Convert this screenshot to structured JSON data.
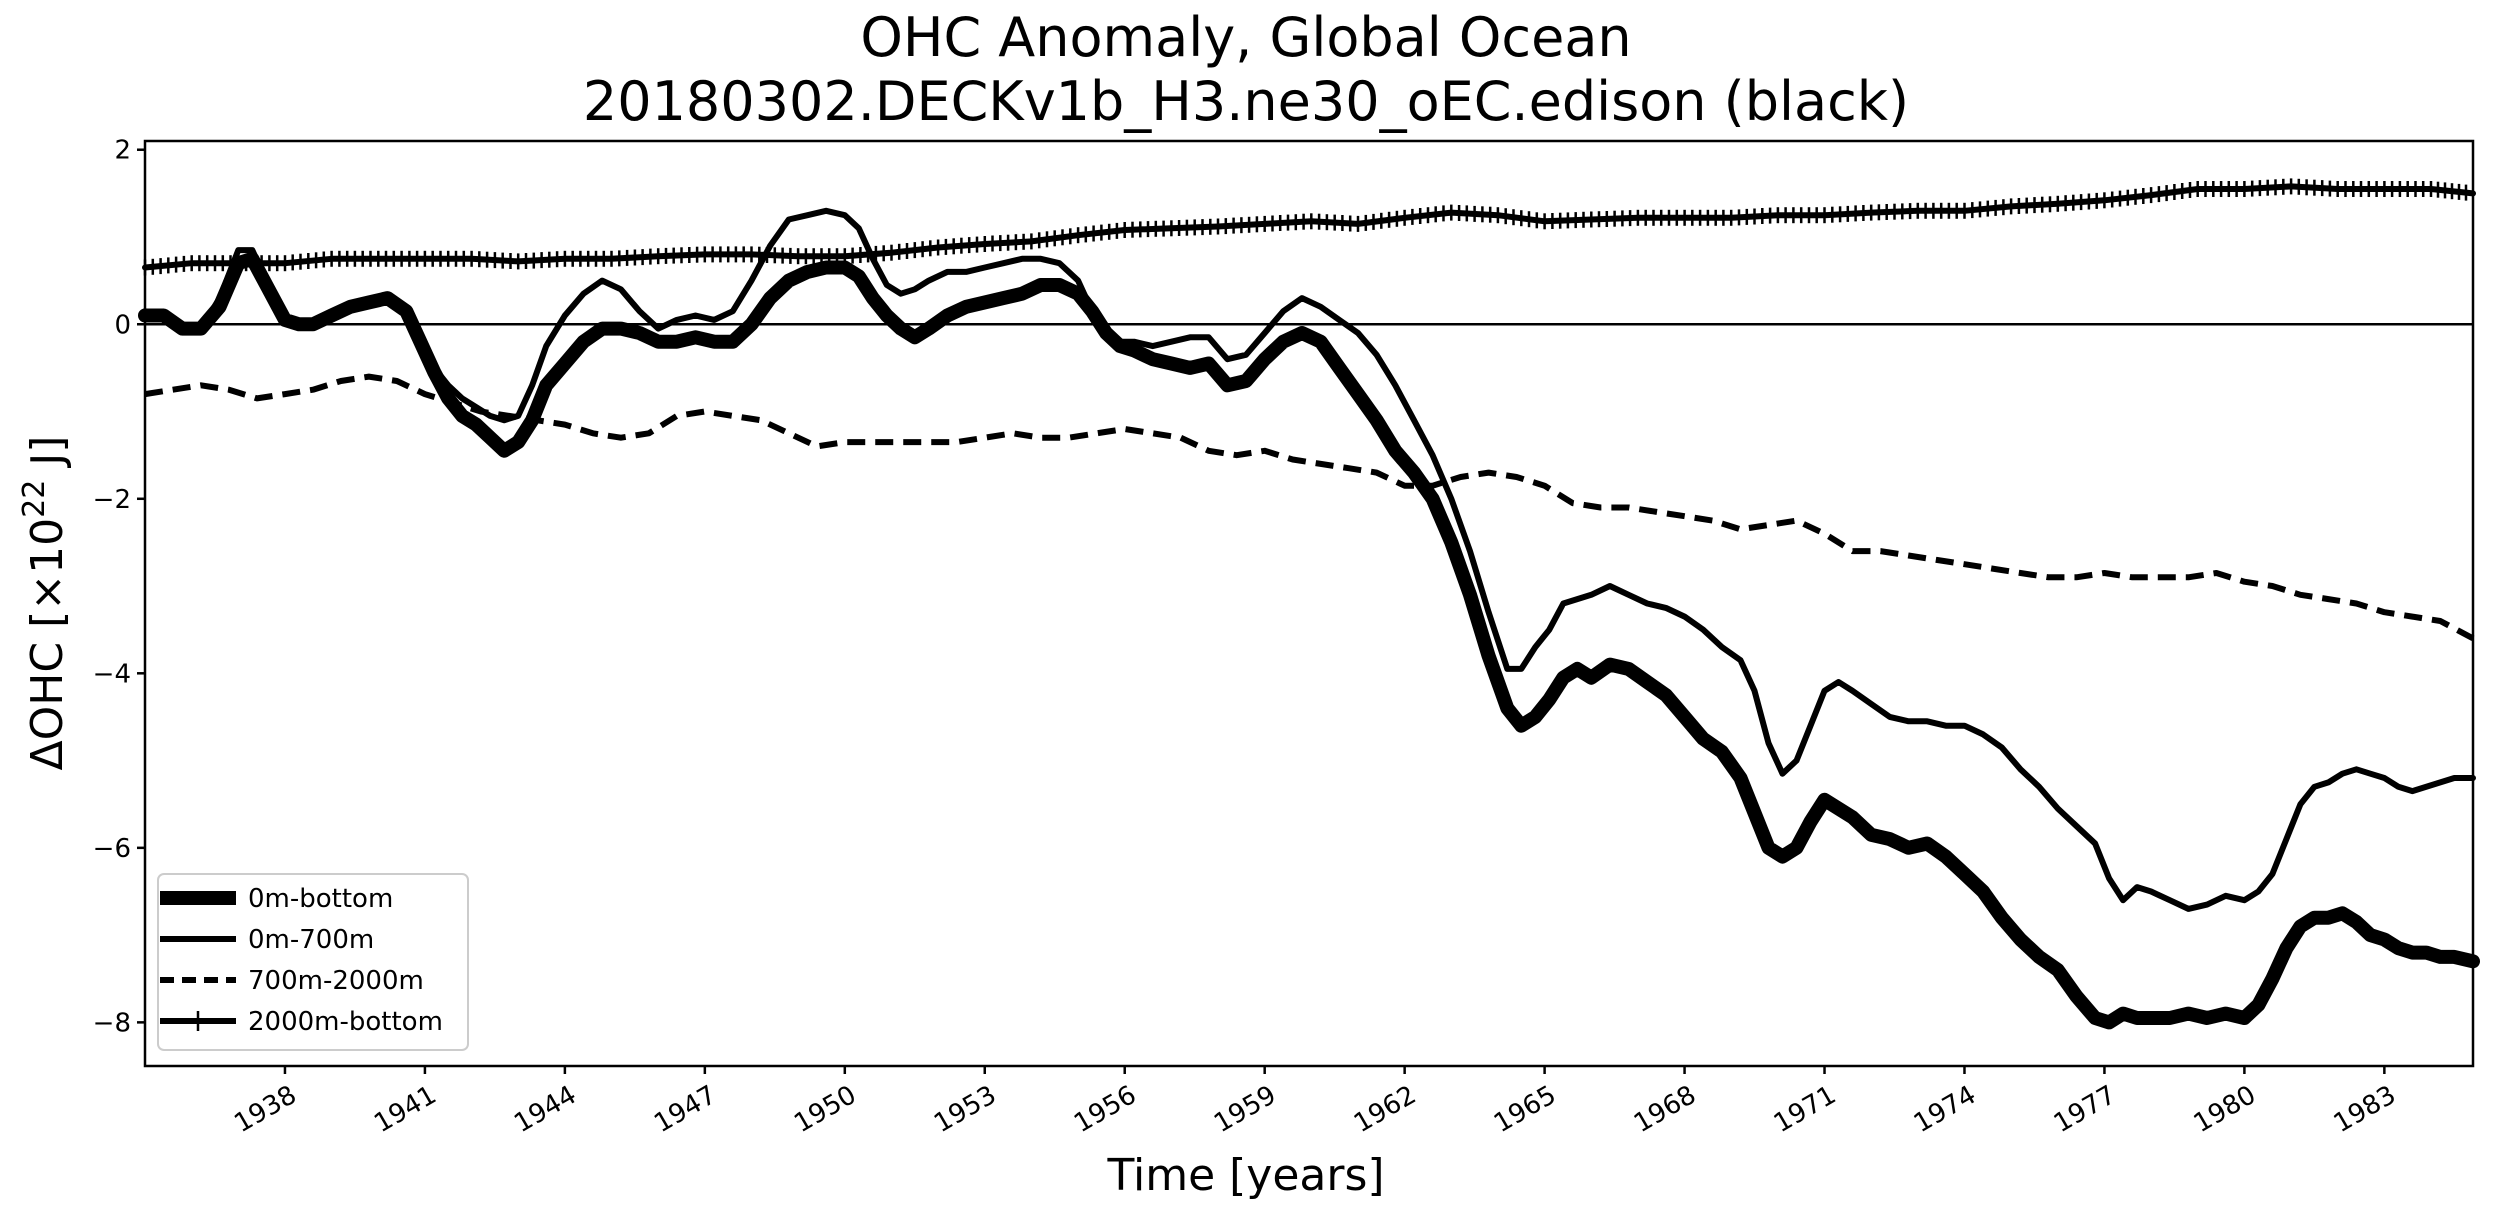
{
  "chart_data": {
    "type": "line",
    "title": "OHC Anomaly, Global Ocean",
    "subtitle": "20180302.DECKv1b_H3.ne30_oEC.edison (black)",
    "xlabel": "Time [years]",
    "ylabel_prefix": "ΔOHC [×10",
    "ylabel_exp": "22",
    "ylabel_suffix": " J]",
    "xlim": [
      1935.0,
      1984.9
    ],
    "ylim": [
      -8.5,
      2.1
    ],
    "xticks": [
      1938,
      1941,
      1944,
      1947,
      1950,
      1953,
      1956,
      1959,
      1962,
      1965,
      1968,
      1971,
      1974,
      1977,
      1980,
      1983
    ],
    "xtick_labels": [
      "1938",
      "1941",
      "1944",
      "1947",
      "1950",
      "1953",
      "1956",
      "1959",
      "1962",
      "1965",
      "1968",
      "1971",
      "1974",
      "1977",
      "1980",
      "1983"
    ],
    "yticks": [
      2,
      0,
      -2,
      -4,
      -6,
      -8
    ],
    "ytick_labels": [
      "2",
      "0",
      "−2",
      "−4",
      "−6",
      "−8"
    ],
    "zero_line": true,
    "grid": false,
    "legend_position": "lower-left",
    "series": [
      {
        "name": "0m-bottom",
        "style": "thick-solid",
        "color": "#000000",
        "x": [
          1935.0,
          1935.4,
          1935.8,
          1936.2,
          1936.6,
          1937.0,
          1937.3,
          1937.6,
          1938.0,
          1938.3,
          1938.6,
          1939.0,
          1939.4,
          1939.8,
          1940.2,
          1940.6,
          1940.9,
          1941.2,
          1941.5,
          1941.8,
          1942.1,
          1942.4,
          1942.7,
          1943.0,
          1943.3,
          1943.6,
          1944.0,
          1944.4,
          1944.8,
          1945.2,
          1945.6,
          1946.0,
          1946.4,
          1946.8,
          1947.2,
          1947.6,
          1948.0,
          1948.4,
          1948.8,
          1949.2,
          1949.6,
          1950.0,
          1950.3,
          1950.6,
          1950.9,
          1951.2,
          1951.5,
          1951.8,
          1952.2,
          1952.6,
          1953.0,
          1953.4,
          1953.8,
          1954.2,
          1954.6,
          1955.0,
          1955.3,
          1955.6,
          1955.9,
          1956.2,
          1956.6,
          1957.0,
          1957.4,
          1957.8,
          1958.2,
          1958.6,
          1959.0,
          1959.4,
          1959.8,
          1960.2,
          1960.6,
          1961.0,
          1961.4,
          1961.8,
          1962.2,
          1962.6,
          1963.0,
          1963.4,
          1963.8,
          1964.2,
          1964.5,
          1964.8,
          1965.1,
          1965.4,
          1965.7,
          1966.0,
          1966.4,
          1966.8,
          1967.2,
          1967.6,
          1968.0,
          1968.4,
          1968.8,
          1969.2,
          1969.5,
          1969.8,
          1970.1,
          1970.4,
          1970.7,
          1971.0,
          1971.3,
          1971.6,
          1972.0,
          1972.4,
          1972.8,
          1973.2,
          1973.6,
          1974.0,
          1974.4,
          1974.8,
          1975.2,
          1975.6,
          1976.0,
          1976.4,
          1976.8,
          1977.1,
          1977.4,
          1977.7,
          1978.0,
          1978.4,
          1978.8,
          1979.2,
          1979.6,
          1980.0,
          1980.3,
          1980.6,
          1980.9,
          1981.2,
          1981.5,
          1981.8,
          1982.1,
          1982.4,
          1982.7,
          1983.0,
          1983.3,
          1983.6,
          1983.9,
          1984.2,
          1984.5,
          1984.9
        ],
        "y": [
          0.1,
          0.1,
          -0.05,
          -0.05,
          0.2,
          0.7,
          0.75,
          0.45,
          0.05,
          0.0,
          0.0,
          0.1,
          0.2,
          0.25,
          0.3,
          0.15,
          -0.2,
          -0.55,
          -0.85,
          -1.05,
          -1.15,
          -1.3,
          -1.45,
          -1.35,
          -1.1,
          -0.7,
          -0.45,
          -0.2,
          -0.05,
          -0.05,
          -0.1,
          -0.2,
          -0.2,
          -0.15,
          -0.2,
          -0.2,
          0.0,
          0.3,
          0.5,
          0.6,
          0.65,
          0.65,
          0.55,
          0.3,
          0.1,
          -0.05,
          -0.15,
          -0.05,
          0.1,
          0.2,
          0.25,
          0.3,
          0.35,
          0.45,
          0.45,
          0.35,
          0.15,
          -0.1,
          -0.25,
          -0.3,
          -0.4,
          -0.45,
          -0.5,
          -0.45,
          -0.7,
          -0.65,
          -0.4,
          -0.2,
          -0.1,
          -0.2,
          -0.5,
          -0.8,
          -1.1,
          -1.45,
          -1.7,
          -2.0,
          -2.5,
          -3.1,
          -3.8,
          -4.4,
          -4.6,
          -4.5,
          -4.3,
          -4.05,
          -3.95,
          -4.05,
          -3.9,
          -3.95,
          -4.1,
          -4.25,
          -4.5,
          -4.75,
          -4.9,
          -5.2,
          -5.6,
          -6.0,
          -6.1,
          -6.0,
          -5.7,
          -5.45,
          -5.55,
          -5.65,
          -5.85,
          -5.9,
          -6.0,
          -5.95,
          -6.1,
          -6.3,
          -6.5,
          -6.8,
          -7.05,
          -7.25,
          -7.4,
          -7.7,
          -7.95,
          -8.0,
          -7.9,
          -7.95,
          -7.95,
          -7.95,
          -7.9,
          -7.95,
          -7.9,
          -7.95,
          -7.8,
          -7.5,
          -7.15,
          -6.9,
          -6.8,
          -6.8,
          -6.75,
          -6.85,
          -7.0,
          -7.05,
          -7.15,
          -7.2,
          -7.2,
          -7.25,
          -7.25,
          -7.3
        ]
      },
      {
        "name": "0m-700m",
        "style": "solid",
        "color": "#000000",
        "x": [
          1935.0,
          1935.4,
          1935.8,
          1936.2,
          1936.6,
          1937.0,
          1937.3,
          1937.6,
          1938.0,
          1938.3,
          1938.6,
          1939.0,
          1939.4,
          1939.8,
          1940.2,
          1940.6,
          1940.9,
          1941.2,
          1941.5,
          1941.8,
          1942.1,
          1942.4,
          1942.7,
          1943.0,
          1943.3,
          1943.6,
          1944.0,
          1944.4,
          1944.8,
          1945.2,
          1945.6,
          1946.0,
          1946.4,
          1946.8,
          1947.2,
          1947.6,
          1948.0,
          1948.4,
          1948.8,
          1949.2,
          1949.6,
          1950.0,
          1950.3,
          1950.6,
          1950.9,
          1951.2,
          1951.5,
          1951.8,
          1952.2,
          1952.6,
          1953.0,
          1953.4,
          1953.8,
          1954.2,
          1954.6,
          1955.0,
          1955.3,
          1955.6,
          1955.9,
          1956.2,
          1956.6,
          1957.0,
          1957.4,
          1957.8,
          1958.2,
          1958.6,
          1959.0,
          1959.4,
          1959.8,
          1960.2,
          1960.6,
          1961.0,
          1961.4,
          1961.8,
          1962.2,
          1962.6,
          1963.0,
          1963.4,
          1963.8,
          1964.2,
          1964.5,
          1964.8,
          1965.1,
          1965.4,
          1965.7,
          1966.0,
          1966.4,
          1966.8,
          1967.2,
          1967.6,
          1968.0,
          1968.4,
          1968.8,
          1969.2,
          1969.5,
          1969.8,
          1970.1,
          1970.4,
          1970.7,
          1971.0,
          1971.3,
          1971.6,
          1972.0,
          1972.4,
          1972.8,
          1973.2,
          1973.6,
          1974.0,
          1974.4,
          1974.8,
          1975.2,
          1975.6,
          1976.0,
          1976.4,
          1976.8,
          1977.1,
          1977.4,
          1977.7,
          1978.0,
          1978.4,
          1978.8,
          1979.2,
          1979.6,
          1980.0,
          1980.3,
          1980.6,
          1980.9,
          1981.2,
          1981.5,
          1981.8,
          1982.1,
          1982.4,
          1982.7,
          1983.0,
          1983.3,
          1983.6,
          1983.9,
          1984.2,
          1984.5,
          1984.9
        ],
        "y": [
          0.15,
          0.1,
          0.0,
          -0.05,
          0.3,
          0.85,
          0.85,
          0.5,
          0.05,
          0.0,
          0.0,
          0.1,
          0.2,
          0.25,
          0.3,
          0.15,
          -0.15,
          -0.5,
          -0.7,
          -0.85,
          -0.95,
          -1.05,
          -1.1,
          -1.05,
          -0.7,
          -0.25,
          0.1,
          0.35,
          0.5,
          0.4,
          0.15,
          -0.05,
          0.05,
          0.1,
          0.05,
          0.15,
          0.5,
          0.9,
          1.2,
          1.25,
          1.3,
          1.25,
          1.1,
          0.75,
          0.45,
          0.35,
          0.4,
          0.5,
          0.6,
          0.6,
          0.65,
          0.7,
          0.75,
          0.75,
          0.7,
          0.5,
          0.15,
          -0.15,
          -0.2,
          -0.2,
          -0.25,
          -0.2,
          -0.15,
          -0.15,
          -0.4,
          -0.35,
          -0.1,
          0.15,
          0.3,
          0.2,
          0.05,
          -0.1,
          -0.35,
          -0.7,
          -1.1,
          -1.5,
          -2.0,
          -2.6,
          -3.3,
          -3.95,
          -3.95,
          -3.7,
          -3.5,
          -3.2,
          -3.15,
          -3.1,
          -3.0,
          -3.1,
          -3.2,
          -3.25,
          -3.35,
          -3.5,
          -3.7,
          -3.85,
          -4.2,
          -4.8,
          -5.15,
          -5.0,
          -4.6,
          -4.2,
          -4.1,
          -4.2,
          -4.35,
          -4.5,
          -4.55,
          -4.55,
          -4.6,
          -4.6,
          -4.7,
          -4.85,
          -5.1,
          -5.3,
          -5.55,
          -5.75,
          -5.95,
          -6.35,
          -6.6,
          -6.45,
          -6.5,
          -6.6,
          -6.7,
          -6.65,
          -6.55,
          -6.6,
          -6.5,
          -6.3,
          -5.9,
          -5.5,
          -5.3,
          -5.25,
          -5.15,
          -5.1,
          -5.15,
          -5.2,
          -5.3,
          -5.35,
          -5.3,
          -5.25,
          -5.2,
          -5.2
        ]
      },
      {
        "name": "700m-2000m",
        "style": "dashed",
        "color": "#000000",
        "x": [
          1935.0,
          1935.6,
          1936.2,
          1936.8,
          1937.4,
          1938.0,
          1938.6,
          1939.2,
          1939.8,
          1940.4,
          1941.0,
          1941.6,
          1942.2,
          1942.8,
          1943.4,
          1944.0,
          1944.6,
          1945.2,
          1945.8,
          1946.4,
          1947.0,
          1947.6,
          1948.2,
          1948.8,
          1949.4,
          1950.0,
          1950.6,
          1951.2,
          1951.8,
          1952.4,
          1953.0,
          1953.6,
          1954.2,
          1954.8,
          1955.4,
          1956.0,
          1956.6,
          1957.2,
          1957.8,
          1958.4,
          1959.0,
          1959.6,
          1960.2,
          1960.8,
          1961.4,
          1962.0,
          1962.6,
          1963.2,
          1963.8,
          1964.4,
          1965.0,
          1965.6,
          1966.2,
          1966.8,
          1967.4,
          1968.0,
          1968.6,
          1969.2,
          1969.8,
          1970.4,
          1971.0,
          1971.6,
          1972.2,
          1972.8,
          1973.4,
          1974.0,
          1974.6,
          1975.2,
          1975.8,
          1976.4,
          1977.0,
          1977.6,
          1978.2,
          1978.8,
          1979.4,
          1980.0,
          1980.6,
          1981.2,
          1981.8,
          1982.4,
          1983.0,
          1983.6,
          1984.2,
          1984.9
        ],
        "y": [
          -0.8,
          -0.75,
          -0.7,
          -0.75,
          -0.85,
          -0.8,
          -0.75,
          -0.65,
          -0.6,
          -0.65,
          -0.8,
          -0.9,
          -1.0,
          -1.05,
          -1.1,
          -1.15,
          -1.25,
          -1.3,
          -1.25,
          -1.05,
          -1.0,
          -1.05,
          -1.1,
          -1.25,
          -1.4,
          -1.35,
          -1.35,
          -1.35,
          -1.35,
          -1.35,
          -1.3,
          -1.25,
          -1.3,
          -1.3,
          -1.25,
          -1.2,
          -1.25,
          -1.3,
          -1.45,
          -1.5,
          -1.45,
          -1.55,
          -1.6,
          -1.65,
          -1.7,
          -1.85,
          -1.85,
          -1.75,
          -1.7,
          -1.75,
          -1.85,
          -2.05,
          -2.1,
          -2.1,
          -2.15,
          -2.2,
          -2.25,
          -2.35,
          -2.3,
          -2.25,
          -2.4,
          -2.6,
          -2.6,
          -2.65,
          -2.7,
          -2.75,
          -2.8,
          -2.85,
          -2.9,
          -2.9,
          -2.85,
          -2.9,
          -2.9,
          -2.9,
          -2.85,
          -2.95,
          -3.0,
          -3.1,
          -3.15,
          -3.2,
          -3.3,
          -3.35,
          -3.4,
          -3.6
        ]
      },
      {
        "name": "2000m-bottom",
        "style": "solid-plus",
        "color": "#000000",
        "x": [
          1935.0,
          1936.0,
          1937.0,
          1938.0,
          1939.0,
          1940.0,
          1941.0,
          1942.0,
          1943.0,
          1944.0,
          1945.0,
          1946.0,
          1947.0,
          1948.0,
          1949.0,
          1950.0,
          1951.0,
          1952.0,
          1953.0,
          1954.0,
          1955.0,
          1956.0,
          1957.0,
          1958.0,
          1959.0,
          1960.0,
          1961.0,
          1962.0,
          1963.0,
          1964.0,
          1965.0,
          1966.0,
          1967.0,
          1968.0,
          1969.0,
          1970.0,
          1971.0,
          1972.0,
          1973.0,
          1974.0,
          1975.0,
          1976.0,
          1977.0,
          1978.0,
          1979.0,
          1980.0,
          1981.0,
          1982.0,
          1983.0,
          1984.0,
          1984.9
        ],
        "y": [
          0.65,
          0.7,
          0.7,
          0.7,
          0.75,
          0.75,
          0.75,
          0.75,
          0.72,
          0.75,
          0.75,
          0.78,
          0.8,
          0.8,
          0.78,
          0.78,
          0.82,
          0.88,
          0.92,
          0.95,
          1.02,
          1.08,
          1.1,
          1.12,
          1.15,
          1.18,
          1.15,
          1.22,
          1.28,
          1.25,
          1.18,
          1.2,
          1.22,
          1.22,
          1.22,
          1.25,
          1.25,
          1.28,
          1.3,
          1.3,
          1.35,
          1.38,
          1.42,
          1.48,
          1.55,
          1.55,
          1.58,
          1.55,
          1.55,
          1.55,
          1.5
        ]
      }
    ]
  }
}
